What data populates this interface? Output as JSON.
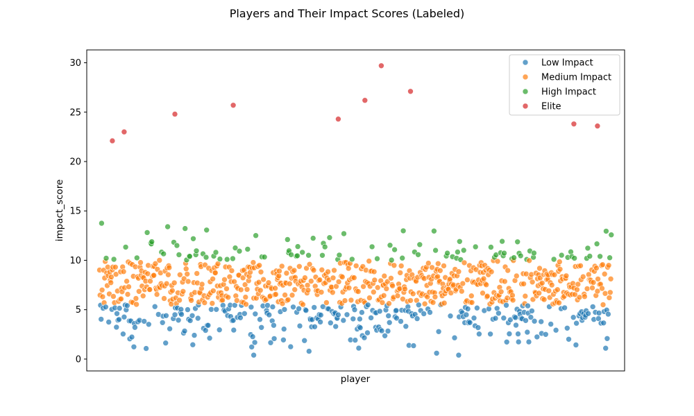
{
  "chart_data": {
    "type": "scatter",
    "title": "Players and Their Impact Scores (Labeled)",
    "xlabel": "player",
    "ylabel": "impact_score",
    "xlim": [
      -25,
      1025
    ],
    "ylim": [
      -1.2,
      31.3
    ],
    "yticks": [
      0,
      5,
      10,
      15,
      20,
      25,
      30
    ],
    "x_ticks_visible": false,
    "grid": false,
    "legend_position": "top-right",
    "point_count": 1000,
    "series": [
      {
        "name": "Low Impact",
        "color": "#1f77b4",
        "y_range": [
          0.4,
          5.5
        ],
        "marker": "circle",
        "alpha": 0.7
      },
      {
        "name": "Medium Impact",
        "color": "#ff7f0e",
        "y_range": [
          5.5,
          10.0
        ],
        "marker": "circle",
        "alpha": 0.7
      },
      {
        "name": "High Impact",
        "color": "#2ca02c",
        "y_range": [
          10.0,
          15.5
        ],
        "marker": "circle",
        "alpha": 0.7
      },
      {
        "name": "Elite",
        "color": "#d62728",
        "y_range": [
          15.5,
          29.7
        ],
        "marker": "circle",
        "alpha": 0.7
      }
    ],
    "notable_points": [
      {
        "series": "Elite",
        "x": 550,
        "y": 29.7
      },
      {
        "series": "Elite",
        "x": 607,
        "y": 27.1
      },
      {
        "series": "Elite",
        "x": 518,
        "y": 26.2
      },
      {
        "series": "Elite",
        "x": 261,
        "y": 25.7
      },
      {
        "series": "Elite",
        "x": 147,
        "y": 24.8
      },
      {
        "series": "Elite",
        "x": 466,
        "y": 24.3
      },
      {
        "series": "Elite",
        "x": 926,
        "y": 23.8
      },
      {
        "series": "Elite",
        "x": 972,
        "y": 23.6
      },
      {
        "series": "Elite",
        "x": 48,
        "y": 23.0
      },
      {
        "series": "Elite",
        "x": 25,
        "y": 22.1
      },
      {
        "series": "Low Impact",
        "x": 301,
        "y": 0.4
      },
      {
        "series": "Low Impact",
        "x": 701,
        "y": 0.4
      },
      {
        "series": "Low Impact",
        "x": 658,
        "y": 0.6
      }
    ]
  }
}
